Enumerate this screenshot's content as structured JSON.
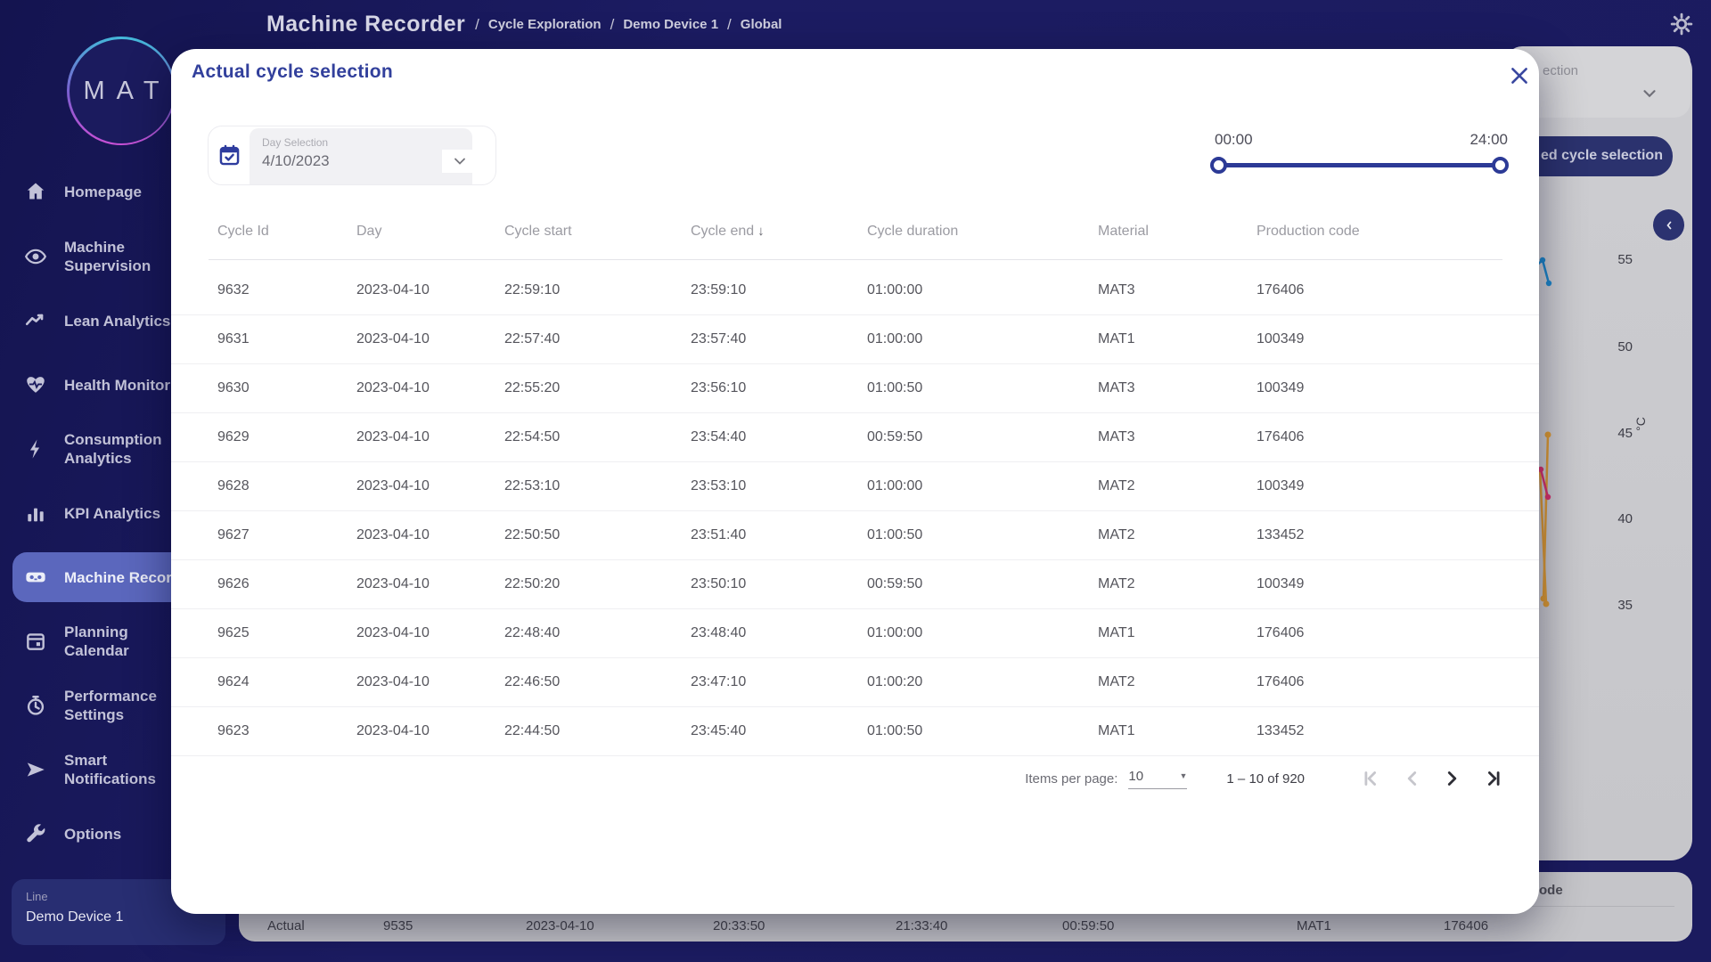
{
  "header": {
    "app_title": "Machine Recorder",
    "separator": "/",
    "breadcrumbs": [
      "Cycle Exploration",
      "Demo Device 1",
      "Global"
    ]
  },
  "sidebar": {
    "logo_text": "MAT",
    "items": [
      {
        "label": "Homepage",
        "icon": "home",
        "selected": false
      },
      {
        "label": "Machine\nSupervision",
        "icon": "eye",
        "selected": false
      },
      {
        "label": "Lean Analytics",
        "icon": "trend",
        "selected": false
      },
      {
        "label": "Health Monitor",
        "icon": "heart",
        "selected": false
      },
      {
        "label": "Consumption\nAnalytics",
        "icon": "bolt",
        "selected": false
      },
      {
        "label": "KPI Analytics",
        "icon": "bar-chart",
        "selected": false
      },
      {
        "label": "Machine Recorder",
        "icon": "recorder",
        "selected": true
      },
      {
        "label": "Planning\nCalendar",
        "icon": "calendar",
        "selected": false
      },
      {
        "label": "Performance\nSettings",
        "icon": "gauge",
        "selected": false
      },
      {
        "label": "Smart\nNotifications",
        "icon": "send",
        "selected": false
      },
      {
        "label": "Options",
        "icon": "wrench",
        "selected": false
      }
    ],
    "line_card": {
      "label": "Line",
      "value": "Demo Device 1"
    }
  },
  "modal": {
    "title": "Actual cycle selection",
    "day_selection": {
      "label": "Day Selection",
      "value": "4/10/2023"
    },
    "time_range": {
      "start": "00:00",
      "end": "24:00"
    },
    "table": {
      "columns": [
        "Cycle Id",
        "Day",
        "Cycle start",
        "Cycle end",
        "Cycle duration",
        "Material",
        "Production code"
      ],
      "sorted_column": "Cycle end",
      "sort_direction": "descending",
      "rows": [
        [
          "9632",
          "2023-04-10",
          "22:59:10",
          "23:59:10",
          "01:00:00",
          "MAT3",
          "176406"
        ],
        [
          "9631",
          "2023-04-10",
          "22:57:40",
          "23:57:40",
          "01:00:00",
          "MAT1",
          "100349"
        ],
        [
          "9630",
          "2023-04-10",
          "22:55:20",
          "23:56:10",
          "01:00:50",
          "MAT3",
          "100349"
        ],
        [
          "9629",
          "2023-04-10",
          "22:54:50",
          "23:54:40",
          "00:59:50",
          "MAT3",
          "176406"
        ],
        [
          "9628",
          "2023-04-10",
          "22:53:10",
          "23:53:10",
          "01:00:00",
          "MAT2",
          "100349"
        ],
        [
          "9627",
          "2023-04-10",
          "22:50:50",
          "23:51:40",
          "01:00:50",
          "MAT2",
          "133452"
        ],
        [
          "9626",
          "2023-04-10",
          "22:50:20",
          "23:50:10",
          "00:59:50",
          "MAT2",
          "100349"
        ],
        [
          "9625",
          "2023-04-10",
          "22:48:40",
          "23:48:40",
          "01:00:00",
          "MAT1",
          "176406"
        ],
        [
          "9624",
          "2023-04-10",
          "22:46:50",
          "23:47:10",
          "01:00:20",
          "MAT2",
          "176406"
        ],
        [
          "9623",
          "2023-04-10",
          "22:44:50",
          "23:45:40",
          "01:00:50",
          "MAT1",
          "133452"
        ]
      ]
    },
    "pagination": {
      "items_per_page_label": "Items per page:",
      "items_per_page_value": "10",
      "range_label": "1 – 10 of 920"
    }
  },
  "background_page": {
    "dropdown_text_fragment": "ection",
    "button_text_fragment": "ed cycle selection",
    "axis_labels": [
      "55",
      "50",
      "45",
      "40",
      "35"
    ],
    "axis_unit": "°C",
    "table_header_fragment": "ode",
    "bottom_row": [
      "Actual",
      "9535",
      "2023-04-10",
      "20:33:50",
      "21:33:40",
      "00:59:50",
      "MAT1",
      "176406"
    ]
  },
  "icons": {
    "sort_descending": "↓",
    "dropdown_caret": "▼"
  },
  "colors": {
    "accent_navy": "#2c3a96",
    "sidebar_background": "#1b1b5e",
    "selected_item": "#5b67bd",
    "logo_gradient_top": "#3fc0da",
    "logo_gradient_bottom": "#cf4fd6",
    "chart_blue": "#1e86c8",
    "chart_orange": "#dc9a33",
    "chart_pink": "#d6336c"
  }
}
